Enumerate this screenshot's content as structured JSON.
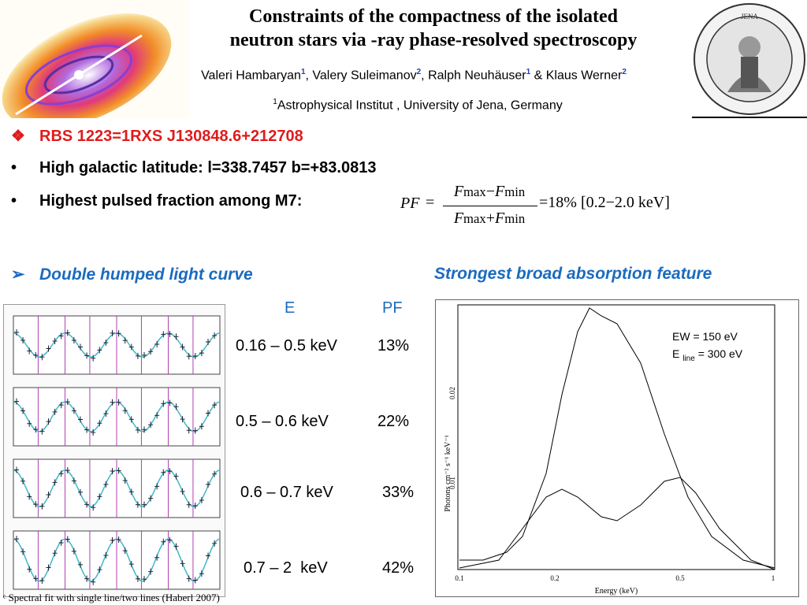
{
  "header": {
    "title_line1": "Constraints of the compactness of the isolated",
    "title_line2": "neutron stars via -ray phase-resolved spectroscopy",
    "authors": [
      {
        "name": "Valeri Hambaryan",
        "sup": "1"
      },
      {
        "name": ", Valery Suleimanov",
        "sup": "2"
      },
      {
        "name": ", Ralph Neuhäuser",
        "sup": "1"
      },
      {
        "name": " & Klaus Werner",
        "sup": "2"
      }
    ],
    "affiliation_sup": "1",
    "affiliation": "Astrophysical Institut , University of Jena, Germany",
    "seal_text": "JENA"
  },
  "bullets": [
    {
      "mark": "❖",
      "text": "RBS 1223=1RXS J130848.6+212708"
    },
    {
      "mark": "•",
      "text": "High galactic latitude: l=338.7457 b=+83.0813"
    },
    {
      "mark": "•",
      "text": "Highest pulsed fraction among M7:"
    }
  ],
  "formula": {
    "lhs": "PF",
    "num_a": "F",
    "num_a_sub": "max",
    "num_op": "−",
    "num_b": "F",
    "num_b_sub": "min",
    "den_a": "F",
    "den_a_sub": "max",
    "den_op": "+",
    "den_b": "F",
    "den_b_sub": "min",
    "rhs": "=18%  [0.2−2.0 keV]"
  },
  "subheads": {
    "left_mark": "➢",
    "left": "Double humped light curve",
    "right": "Strongest broad absorption feature"
  },
  "pf_table": {
    "col_e": "E",
    "col_pf": "PF",
    "rows": [
      {
        "e": "0.16 – 0.5 keV",
        "pf": "13%"
      },
      {
        "e": "0.5 – 0.6 keV",
        "pf": "22%"
      },
      {
        "e": "0.6 – 0.7 keV",
        "pf": "33%"
      },
      {
        "e": "0.7 – 2  keV",
        "pf": "42%"
      }
    ]
  },
  "spectrum": {
    "ew": "EW = 150 eV",
    "eline_pre": "E ",
    "eline_sub": "line",
    "eline_post": " = 300 eV",
    "ylabel": "Photons cm⁻² s⁻¹ keV⁻¹",
    "xlabel": "Energy (keV)",
    "yticks": [
      "0.02",
      "0.01"
    ],
    "xticks": [
      "0.1",
      "0.2",
      "0.5",
      "1"
    ]
  },
  "footnote": "ᶜ Spectral fit with single line/two lines (Haberl 2007)",
  "colors": {
    "accent_red": "#e01b1b",
    "accent_blue": "#1b6bbf",
    "curve_cyan": "#3fb8c8",
    "phase_line": "#b040b0"
  }
}
